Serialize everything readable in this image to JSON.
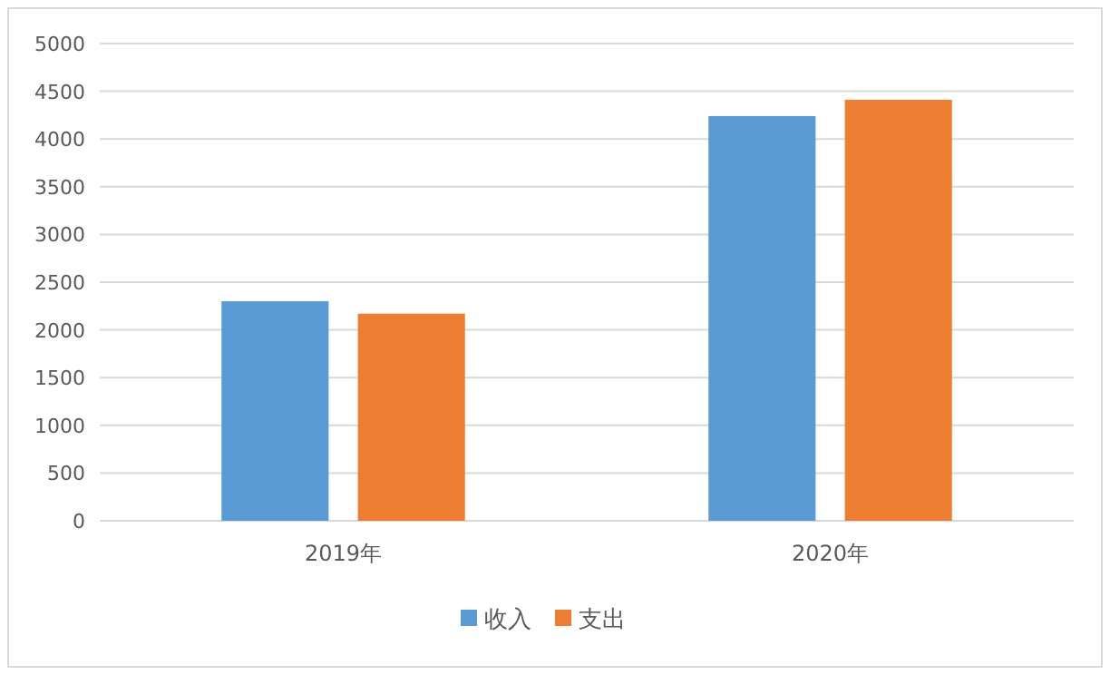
{
  "chart_data": {
    "type": "bar",
    "categories": [
      "2019年",
      "2020年"
    ],
    "series": [
      {
        "name": "收入",
        "color": "#5b9bd5",
        "values": [
          2300,
          4240
        ]
      },
      {
        "name": "支出",
        "color": "#ed7d31",
        "values": [
          2170,
          4410
        ]
      }
    ],
    "ylim": [
      0,
      5000
    ],
    "yticks": [
      0,
      500,
      1000,
      1500,
      2000,
      2500,
      3000,
      3500,
      4000,
      4500,
      5000
    ],
    "grid": "y",
    "legend": "bottom"
  }
}
